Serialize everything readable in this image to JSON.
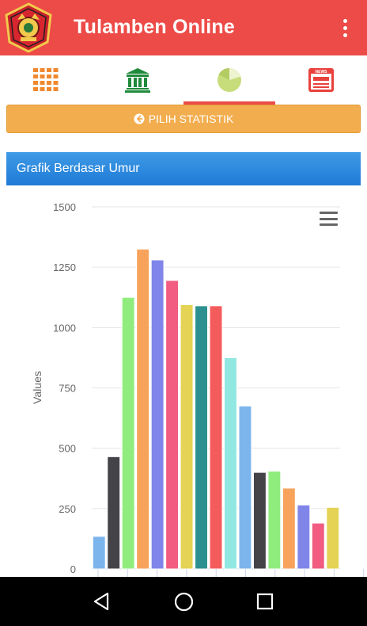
{
  "app": {
    "title": "Tulamben Online"
  },
  "logo": {
    "icon": "regency-emblem-icon"
  },
  "menu": {
    "icon": "more-vertical-icon"
  },
  "tabs": [
    {
      "icon": "grid-icon",
      "color": "#f0882e",
      "selected": false
    },
    {
      "icon": "government-building-icon",
      "color": "#1f8a3b",
      "selected": false
    },
    {
      "icon": "pie-chart-icon",
      "color": "#c7dc7b",
      "selected": true
    },
    {
      "icon": "news-icon",
      "color": "#e9413c",
      "selected": false
    }
  ],
  "pilih": {
    "label": "PILIH STATISTIK",
    "icon": "arrow-left-circle-icon"
  },
  "chart_header": {
    "title": "Grafik Berdasar Umur"
  },
  "chart_menu": {
    "icon": "hamburger-menu-icon"
  },
  "chart_data": {
    "type": "bar",
    "ylabel": "Values",
    "ylim": [
      0,
      1500
    ],
    "yticks": [
      0,
      250,
      500,
      750,
      1000,
      1250,
      1500
    ],
    "grid": true,
    "values": [
      135,
      465,
      1125,
      1325,
      1280,
      1195,
      1095,
      1090,
      1090,
      875,
      675,
      400,
      405,
      335,
      265,
      190,
      255
    ],
    "colors": [
      "#7cb5ec",
      "#434348",
      "#90ed7d",
      "#f7a35c",
      "#8085e9",
      "#f15c80",
      "#e4d354",
      "#2b908f",
      "#f45b5b",
      "#91e8e1",
      "#7cb5ec",
      "#434348",
      "#90ed7d",
      "#f7a35c",
      "#8085e9",
      "#f15c80",
      "#e4d354"
    ]
  },
  "navbar": {
    "back": "back-icon",
    "home": "home-icon",
    "recents": "recents-icon"
  }
}
